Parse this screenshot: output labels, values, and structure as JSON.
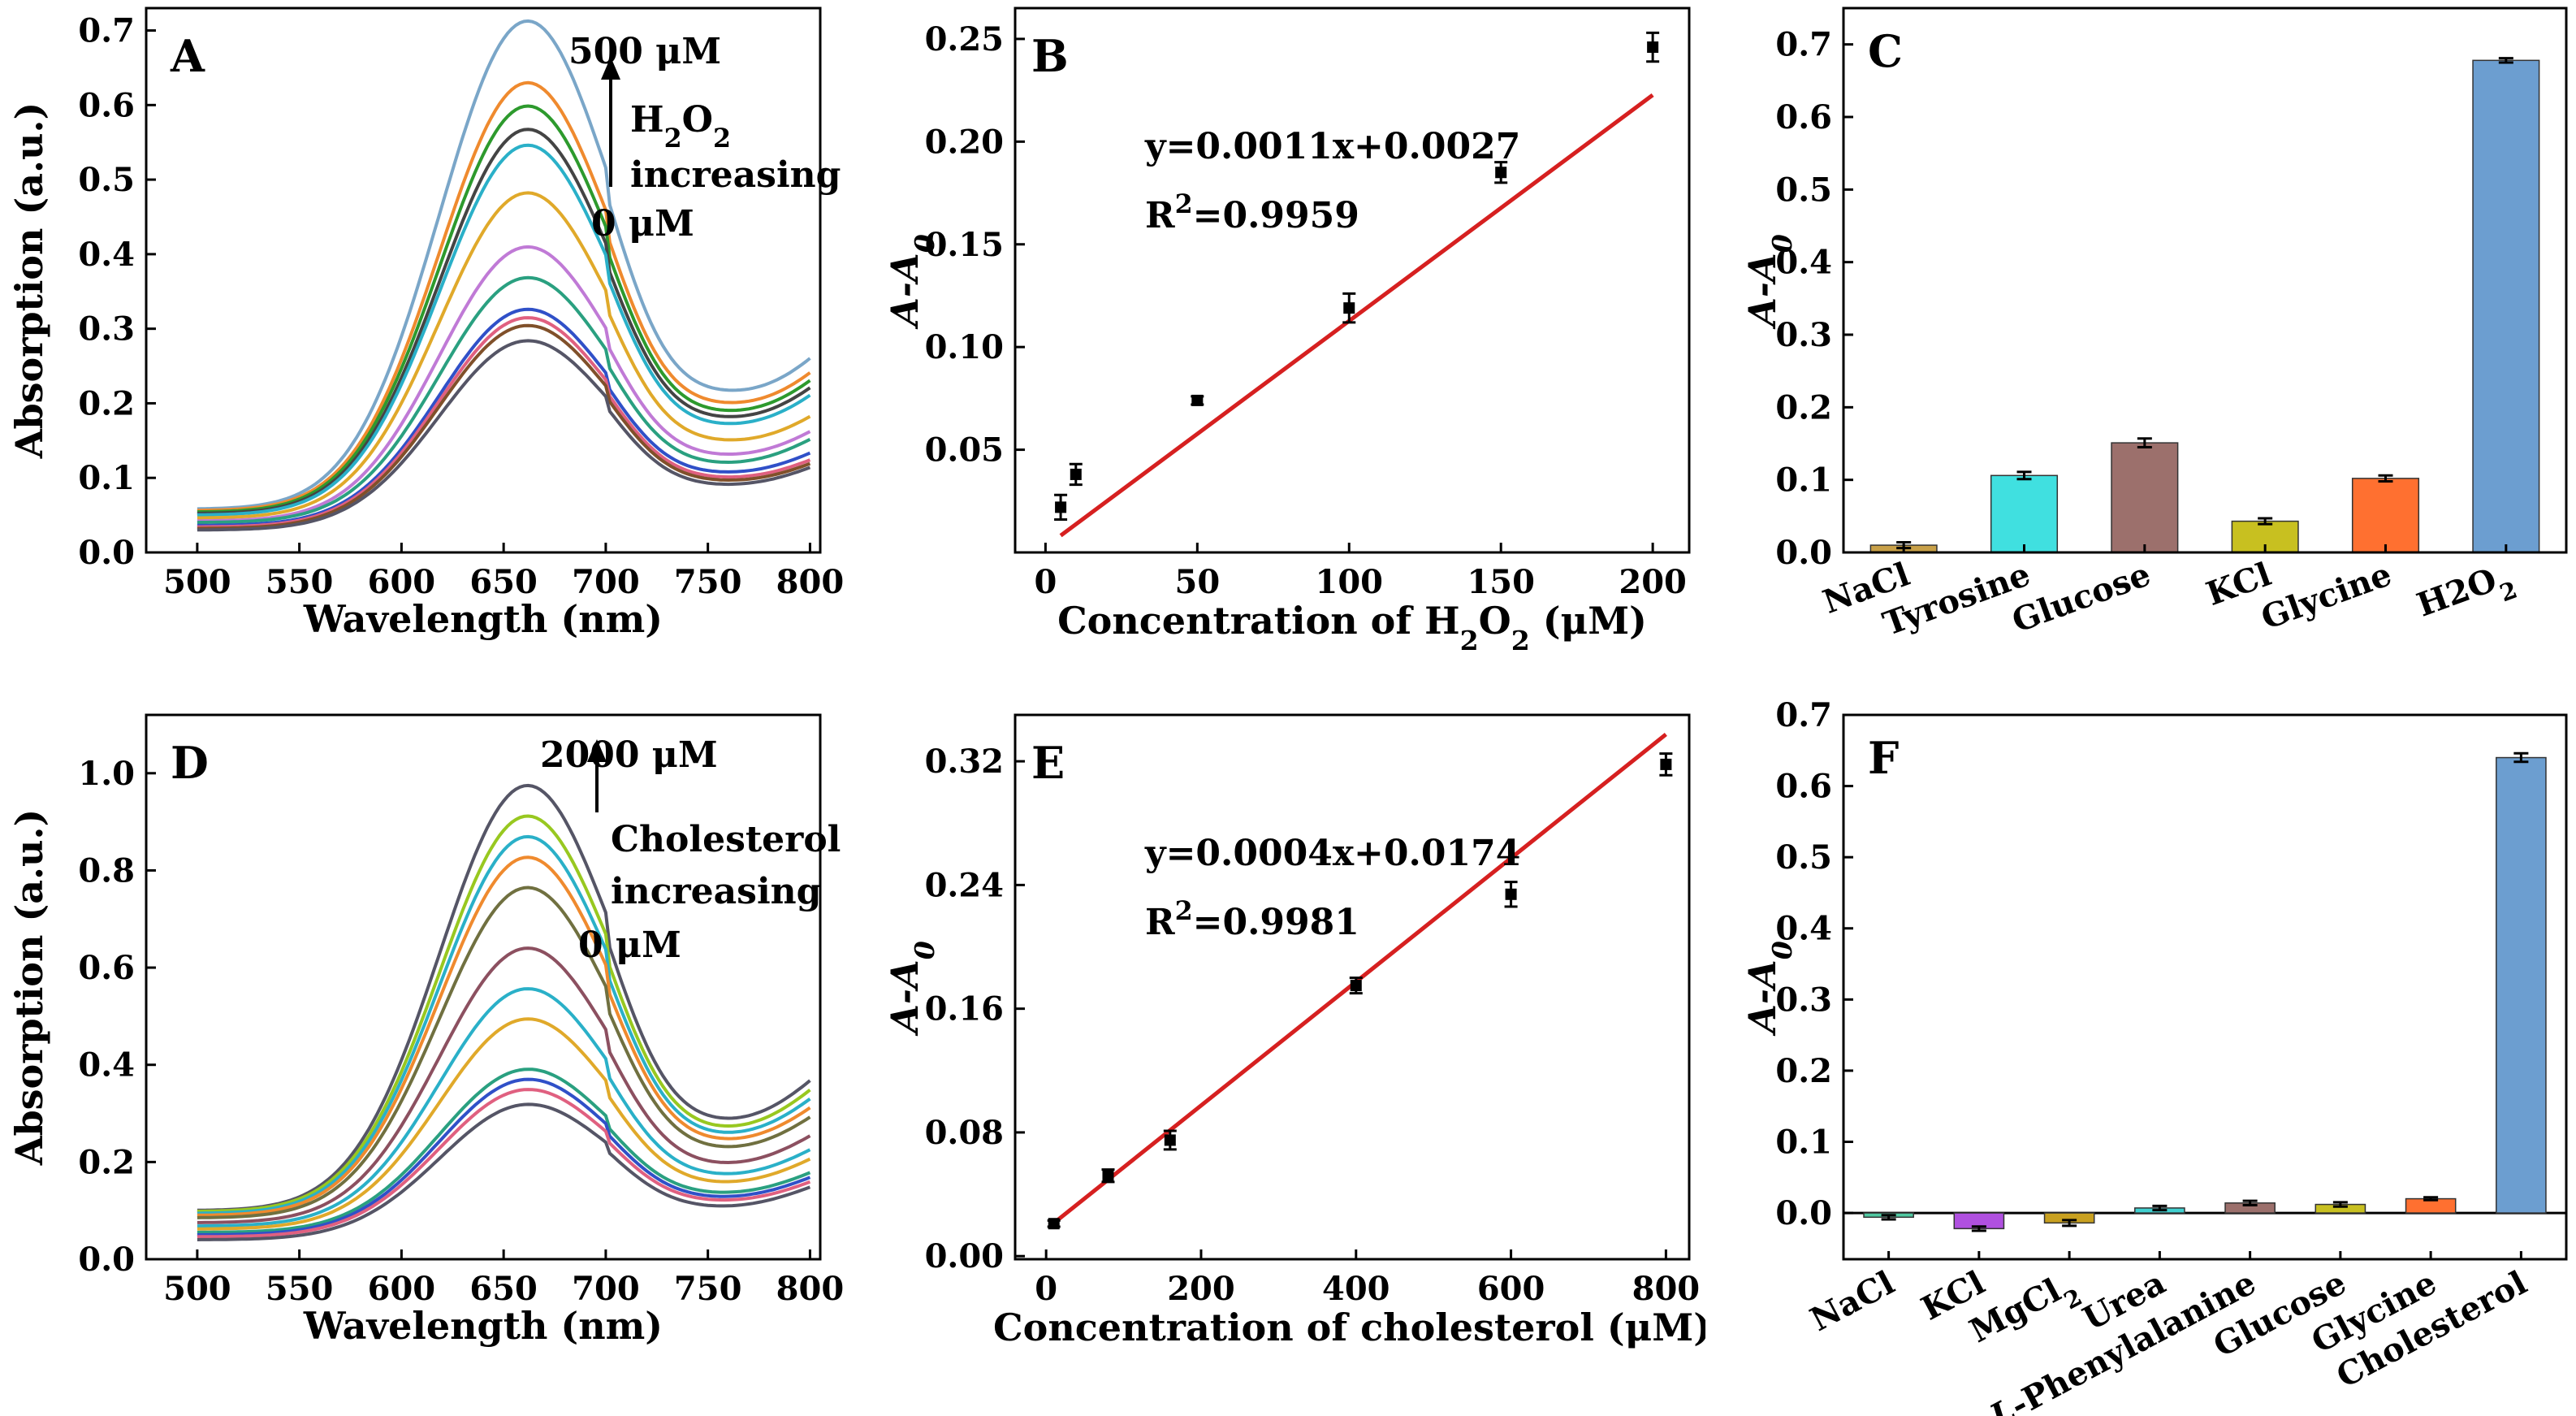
{
  "chart_data": [
    {
      "id": "A",
      "type": "line",
      "panel_label": "A",
      "xlabel": "Wavelength (nm)",
      "ylabel": "Absorption (a.u.)",
      "xlim": [
        475,
        805
      ],
      "ylim": [
        0,
        0.73
      ],
      "xticks": [
        500,
        550,
        600,
        650,
        700,
        750,
        800
      ],
      "yticks": [
        0.0,
        0.1,
        0.2,
        0.3,
        0.4,
        0.5,
        0.6,
        0.7
      ],
      "peak_x": 660,
      "series": [
        {
          "peak": 0.68,
          "start": 0.058,
          "min": 0.205,
          "end": 0.27,
          "color": "#7aa6c8"
        },
        {
          "peak": 0.6,
          "start": 0.056,
          "min": 0.19,
          "end": 0.25,
          "color": "#ef8a2e"
        },
        {
          "peak": 0.57,
          "start": 0.054,
          "min": 0.178,
          "end": 0.24,
          "color": "#2d9a2d"
        },
        {
          "peak": 0.54,
          "start": 0.052,
          "min": 0.17,
          "end": 0.23,
          "color": "#444444"
        },
        {
          "peak": 0.52,
          "start": 0.05,
          "min": 0.16,
          "end": 0.22,
          "color": "#2ab0c8"
        },
        {
          "peak": 0.46,
          "start": 0.046,
          "min": 0.14,
          "end": 0.19,
          "color": "#e0a92a"
        },
        {
          "peak": 0.39,
          "start": 0.042,
          "min": 0.12,
          "end": 0.17,
          "color": "#c07ad6"
        },
        {
          "peak": 0.35,
          "start": 0.04,
          "min": 0.108,
          "end": 0.16,
          "color": "#2aa080"
        },
        {
          "peak": 0.31,
          "start": 0.036,
          "min": 0.098,
          "end": 0.14,
          "color": "#3050c8"
        },
        {
          "peak": 0.3,
          "start": 0.034,
          "min": 0.092,
          "end": 0.13,
          "color": "#e06080"
        },
        {
          "peak": 0.29,
          "start": 0.032,
          "min": 0.088,
          "end": 0.125,
          "color": "#80502a"
        },
        {
          "peak": 0.27,
          "start": 0.03,
          "min": 0.082,
          "end": 0.12,
          "color": "#555566"
        }
      ],
      "annotations": {
        "top": "500 μM",
        "species": "H2O2",
        "increasing": "increasing",
        "bottom": "0 μM"
      }
    },
    {
      "id": "B",
      "type": "scatter",
      "panel_label": "B",
      "xlabel": "Concentration of H2O2 (μM)",
      "ylabel": "A-A0",
      "xlim": [
        -10,
        212
      ],
      "ylim": [
        0,
        0.265
      ],
      "xticks": [
        0,
        50,
        100,
        150,
        200
      ],
      "yticks": [
        0.05,
        0.1,
        0.15,
        0.2,
        0.25
      ],
      "x": [
        5,
        10,
        50,
        100,
        150,
        200
      ],
      "y": [
        0.022,
        0.038,
        0.074,
        0.119,
        0.185,
        0.246
      ],
      "err": [
        0.006,
        0.005,
        0.002,
        0.007,
        0.005,
        0.007
      ],
      "fit": {
        "slope": 0.0011,
        "intercept": 0.0027,
        "from": 5,
        "to": 200,
        "color": "#d62020"
      },
      "equation": "y=0.0011x+0.0027",
      "r2": "R2=0.9959"
    },
    {
      "id": "C",
      "type": "bar",
      "panel_label": "C",
      "ylabel": "A-A0",
      "ylim": [
        0,
        0.75
      ],
      "yticks": [
        0.0,
        0.1,
        0.2,
        0.3,
        0.4,
        0.5,
        0.6,
        0.7
      ],
      "categories": [
        "NaCl",
        "Tyrosine",
        "Glucose",
        "KCl",
        "Glycine",
        "H2O2"
      ],
      "values": [
        0.01,
        0.106,
        0.151,
        0.043,
        0.102,
        0.678
      ],
      "err": [
        0.004,
        0.005,
        0.006,
        0.004,
        0.004,
        0.003
      ],
      "colors": [
        "#c8a048",
        "#40e0e0",
        "#9c706c",
        "#c8c020",
        "#ff7030",
        "#6c9ed0"
      ]
    },
    {
      "id": "D",
      "type": "line",
      "panel_label": "D",
      "xlabel": "Wavelength (nm)",
      "ylabel": "Absorption (a.u.)",
      "xlim": [
        475,
        805
      ],
      "ylim": [
        0,
        1.12
      ],
      "xticks": [
        500,
        550,
        600,
        650,
        700,
        750,
        800
      ],
      "yticks": [
        0.0,
        0.2,
        0.4,
        0.6,
        0.8,
        1.0
      ],
      "peak_x": 660,
      "series": [
        {
          "peak": 0.93,
          "start": 0.1,
          "min": 0.25,
          "end": 0.39,
          "color": "#555566"
        },
        {
          "peak": 0.87,
          "start": 0.098,
          "min": 0.235,
          "end": 0.37,
          "color": "#98c820"
        },
        {
          "peak": 0.83,
          "start": 0.094,
          "min": 0.225,
          "end": 0.35,
          "color": "#2ab0c8"
        },
        {
          "peak": 0.79,
          "start": 0.09,
          "min": 0.215,
          "end": 0.33,
          "color": "#ef8a2e"
        },
        {
          "peak": 0.73,
          "start": 0.085,
          "min": 0.2,
          "end": 0.31,
          "color": "#707040"
        },
        {
          "peak": 0.61,
          "start": 0.075,
          "min": 0.17,
          "end": 0.27,
          "color": "#8c5060"
        },
        {
          "peak": 0.53,
          "start": 0.068,
          "min": 0.15,
          "end": 0.24,
          "color": "#2ab0c8"
        },
        {
          "peak": 0.47,
          "start": 0.062,
          "min": 0.135,
          "end": 0.22,
          "color": "#e0a92a"
        },
        {
          "peak": 0.37,
          "start": 0.055,
          "min": 0.118,
          "end": 0.19,
          "color": "#2aa080"
        },
        {
          "peak": 0.35,
          "start": 0.05,
          "min": 0.11,
          "end": 0.18,
          "color": "#3050c8"
        },
        {
          "peak": 0.33,
          "start": 0.046,
          "min": 0.104,
          "end": 0.17,
          "color": "#e06080"
        },
        {
          "peak": 0.3,
          "start": 0.04,
          "min": 0.09,
          "end": 0.16,
          "color": "#555566"
        }
      ],
      "annotations": {
        "top": "2000 μM",
        "species": "Cholesterol",
        "increasing": "increasing",
        "bottom": "0 μM"
      }
    },
    {
      "id": "E",
      "type": "scatter",
      "panel_label": "E",
      "xlabel": "Concentration of cholesterol (μM)",
      "ylabel": "A-A0",
      "xlim": [
        -40,
        830
      ],
      "ylim": [
        -0.002,
        0.35
      ],
      "xticks": [
        0,
        200,
        400,
        600,
        800
      ],
      "yticks": [
        0.0,
        0.08,
        0.16,
        0.24,
        0.32
      ],
      "x": [
        10,
        80,
        160,
        400,
        600,
        800
      ],
      "y": [
        0.021,
        0.052,
        0.075,
        0.175,
        0.234,
        0.318
      ],
      "err": [
        0.002,
        0.004,
        0.006,
        0.005,
        0.008,
        0.007
      ],
      "fit": {
        "slope": 0.0004,
        "intercept": 0.0174,
        "from": 10,
        "to": 800,
        "color": "#d62020"
      },
      "equation": "y=0.0004x+0.0174",
      "r2": "R2=0.9981"
    },
    {
      "id": "F",
      "type": "bar",
      "panel_label": "F",
      "ylabel": "A-A0",
      "ylim": [
        -0.065,
        0.7
      ],
      "yticks": [
        0.0,
        0.1,
        0.2,
        0.3,
        0.4,
        0.5,
        0.6,
        0.7
      ],
      "categories": [
        "NaCl",
        "KCl",
        "MgCl2",
        "Urea",
        "L-Phenylalanine",
        "Glucose",
        "Glycine",
        "Cholesterol"
      ],
      "values": [
        -0.006,
        -0.022,
        -0.014,
        0.007,
        0.014,
        0.012,
        0.02,
        0.64
      ],
      "err": [
        0.003,
        0.003,
        0.004,
        0.003,
        0.003,
        0.003,
        0.002,
        0.006
      ],
      "colors": [
        "#50c8a0",
        "#b050e0",
        "#c8a020",
        "#40d0d0",
        "#9c706c",
        "#c8c020",
        "#ff7030",
        "#6c9ed0"
      ]
    }
  ]
}
